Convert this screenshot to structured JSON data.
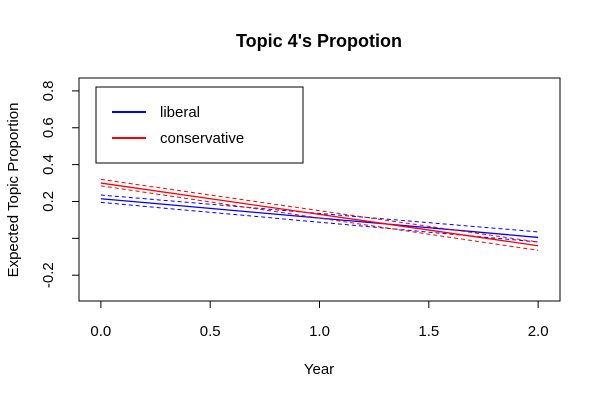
{
  "chart_data": {
    "type": "line",
    "title": "Topic 4's Propotion",
    "xlabel": "Year",
    "ylabel": "Expected Topic Proportion",
    "xlim": [
      -0.1,
      2.1
    ],
    "ylim": [
      -0.34,
      0.87
    ],
    "x_ticks": [
      0.0,
      0.5,
      1.0,
      1.5,
      2.0
    ],
    "x_tick_labels": [
      "0.0",
      "0.5",
      "1.0",
      "1.5",
      "2.0"
    ],
    "y_ticks": [
      -0.2,
      0.0,
      0.2,
      0.4,
      0.6,
      0.8
    ],
    "y_tick_labels": [
      "-0.2",
      "",
      "0.2",
      "0.4",
      "0.6",
      "0.8"
    ],
    "grid": false,
    "legend_position": "top-left",
    "series": [
      {
        "name": "liberal",
        "color": "#0000ff",
        "x": [
          0,
          2
        ],
        "y": [
          0.215,
          0.005
        ],
        "ci_upper": [
          0.235,
          0.035
        ],
        "ci_lower": [
          0.195,
          -0.02
        ]
      },
      {
        "name": "conservative",
        "color": "#ff0000",
        "x": [
          0,
          2
        ],
        "y": [
          0.3,
          -0.04
        ],
        "ci_upper": [
          0.32,
          -0.02
        ],
        "ci_lower": [
          0.285,
          -0.065
        ]
      }
    ]
  }
}
